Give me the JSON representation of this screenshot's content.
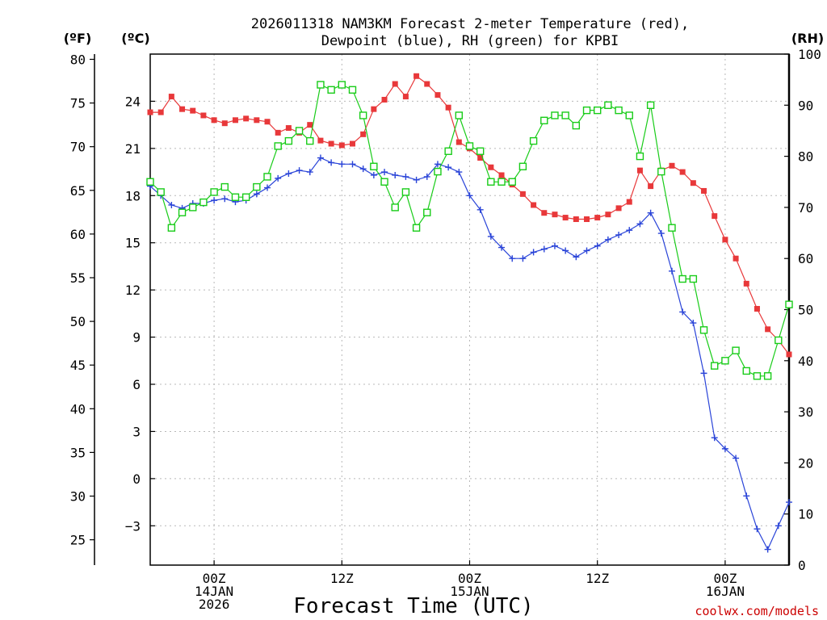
{
  "chart_data": {
    "type": "line",
    "title": "2026011318 NAM3KM Forecast 2-meter Temperature (red),",
    "subtitle": "Dewpoint (blue), RH (green) for KPBI",
    "xlabel": "Forecast Time (UTC)",
    "credit": "coolwx.com/models",
    "units": {
      "left_f": "(ºF)",
      "left_c": "(ºC)",
      "right": "(RH)"
    },
    "x_hours": [
      0,
      1,
      2,
      3,
      4,
      5,
      6,
      7,
      8,
      9,
      10,
      11,
      12,
      13,
      14,
      15,
      16,
      17,
      18,
      19,
      20,
      21,
      22,
      23,
      24,
      25,
      26,
      27,
      28,
      29,
      30,
      31,
      32,
      33,
      34,
      35,
      36,
      37,
      38,
      39,
      40,
      41,
      42,
      43,
      44,
      45,
      46,
      47,
      48,
      49,
      50,
      51,
      52,
      53,
      54,
      55,
      56,
      57,
      58,
      59,
      60
    ],
    "xlim": [
      0,
      60
    ],
    "x_ticks": [
      {
        "hour": 6,
        "line1": "00Z",
        "line2": "14JAN",
        "line3": "2026"
      },
      {
        "hour": 18,
        "line1": "12Z",
        "line2": "",
        "line3": ""
      },
      {
        "hour": 30,
        "line1": "00Z",
        "line2": "15JAN",
        "line3": ""
      },
      {
        "hour": 42,
        "line1": "12Z",
        "line2": "",
        "line3": ""
      },
      {
        "hour": 54,
        "line1": "00Z",
        "line2": "16JAN",
        "line3": ""
      }
    ],
    "ylim_c": [
      -5.5,
      27
    ],
    "yticks_c": [
      "24",
      "21",
      "18",
      "15",
      "12",
      "9",
      "6",
      "3",
      "0",
      "−3"
    ],
    "yticks_f": [
      "80",
      "75",
      "70",
      "65",
      "60",
      "55",
      "50",
      "45",
      "40",
      "35",
      "30",
      "25"
    ],
    "ylim_rh": [
      0,
      100
    ],
    "yticks_rh": [
      "100",
      "90",
      "80",
      "70",
      "60",
      "50",
      "40",
      "30",
      "20",
      "10",
      "0"
    ],
    "grid": true,
    "series": [
      {
        "name": "Temperature",
        "unit": "C",
        "color": "#e8383a",
        "marker": "filled-square",
        "values": [
          23.3,
          23.3,
          24.3,
          23.5,
          23.4,
          23.1,
          22.8,
          22.6,
          22.8,
          22.9,
          22.8,
          22.7,
          22.0,
          22.3,
          22.0,
          22.5,
          21.5,
          21.3,
          21.2,
          21.3,
          21.9,
          23.5,
          24.1,
          25.1,
          24.3,
          25.6,
          25.1,
          24.4,
          23.6,
          21.4,
          21.0,
          20.4,
          19.8,
          19.3,
          18.7,
          18.1,
          17.4,
          16.9,
          16.8,
          16.6,
          16.5,
          16.5,
          16.6,
          16.8,
          17.2,
          17.6,
          19.6,
          18.6,
          19.6,
          19.9,
          19.5,
          18.8,
          18.3,
          16.7,
          15.2,
          14.0,
          12.4,
          10.8,
          9.5,
          8.8,
          7.9
        ]
      },
      {
        "name": "Dewpoint",
        "unit": "C",
        "color": "#2a44d8",
        "marker": "plus",
        "values": [
          18.6,
          18.0,
          17.4,
          17.2,
          17.5,
          17.5,
          17.7,
          17.8,
          17.6,
          17.7,
          18.1,
          18.5,
          19.1,
          19.4,
          19.6,
          19.5,
          20.4,
          20.1,
          20.0,
          20.0,
          19.7,
          19.3,
          19.5,
          19.3,
          19.2,
          19.0,
          19.2,
          20.0,
          19.8,
          19.5,
          18.0,
          17.1,
          15.4,
          14.7,
          14.0,
          14.0,
          14.4,
          14.6,
          14.8,
          14.5,
          14.1,
          14.5,
          14.8,
          15.2,
          15.5,
          15.8,
          16.2,
          16.9,
          15.6,
          13.2,
          10.6,
          9.9,
          6.7,
          2.6,
          1.9,
          1.3,
          -1.1,
          -3.2,
          -4.5,
          -3.0,
          -1.5
        ]
      },
      {
        "name": "RH",
        "unit": "%",
        "color": "#18cc18",
        "marker": "open-square",
        "values": [
          75,
          73,
          66,
          69,
          70,
          71,
          73,
          74,
          72,
          72,
          74,
          76,
          82,
          83,
          85,
          83,
          94,
          93,
          94,
          93,
          88,
          78,
          75,
          70,
          73,
          66,
          69,
          77,
          81,
          88,
          82,
          81,
          75,
          75,
          75,
          78,
          83,
          87,
          88,
          88,
          86,
          89,
          89,
          90,
          89,
          88,
          80,
          90,
          77,
          66,
          56,
          56,
          46,
          39,
          40,
          42,
          38,
          37,
          37,
          44,
          51
        ]
      }
    ]
  }
}
